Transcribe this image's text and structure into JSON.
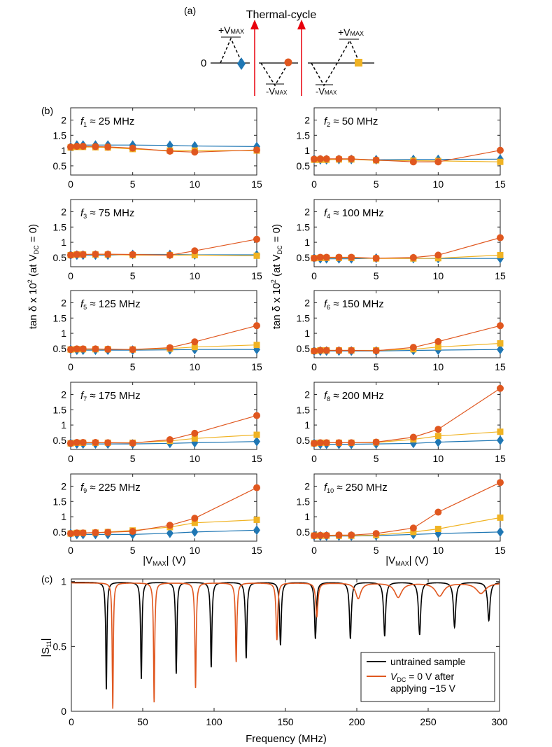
{
  "colors": {
    "series_a": "#1f77b4",
    "series_b": "#e0571f",
    "series_c": "#f0b323",
    "untrained": "#000000",
    "trained": "#e0571f",
    "arrow": "#e8000b"
  },
  "schematic": {
    "panel_label": "(a)",
    "title": "Thermal-cycle",
    "zero_label": "0",
    "plus_v": "+V",
    "minus_v": "-V",
    "max_sub": "MAX"
  },
  "panel_b": {
    "panel_label": "(b)"
  },
  "panel_c": {
    "panel_label": "(c)"
  },
  "chart_data": [
    {
      "type": "line",
      "id": "panel-b-grid",
      "x": [
        0,
        0.5,
        1,
        2,
        3,
        5,
        8,
        10,
        15
      ],
      "xlim": [
        0,
        15
      ],
      "ylim": [
        0.2,
        2.4
      ],
      "xticks": [
        0,
        5,
        10,
        15
      ],
      "yticks": [
        0.5,
        1,
        1.5,
        2
      ],
      "ytick_labels": [
        "0.5",
        "1",
        "1.5",
        "2"
      ],
      "xlabel": {
        "prefix": "|V",
        "sub": "MAX",
        "suffix": "| (V)"
      },
      "ylabel": {
        "pre": "tan δ x 10",
        "sup": "2",
        "mid": " (at V",
        "sub": "DC",
        "post": " = 0)"
      },
      "series_names": [
        "diamond (blue)",
        "circle (orange)",
        "square (yellow)"
      ],
      "subplots": [
        {
          "sym": "f",
          "idx": "1",
          "label": "≈ 25 MHz",
          "a": [
            1.12,
            1.18,
            1.18,
            1.18,
            1.18,
            1.18,
            1.17,
            1.15,
            1.13
          ],
          "b": [
            1.12,
            1.14,
            1.14,
            1.13,
            1.12,
            1.08,
            0.98,
            0.95,
            1.02
          ],
          "c": [
            1.1,
            1.12,
            1.12,
            1.11,
            1.1,
            1.05,
            1.0,
            1.0,
            1.0
          ]
        },
        {
          "sym": "f",
          "idx": "2",
          "label": "≈ 50 MHz",
          "a": [
            0.72,
            0.7,
            0.7,
            0.71,
            0.71,
            0.7,
            0.71,
            0.71,
            0.72
          ],
          "b": [
            0.72,
            0.73,
            0.73,
            0.73,
            0.73,
            0.69,
            0.63,
            0.63,
            1.01
          ],
          "c": [
            0.7,
            0.7,
            0.7,
            0.71,
            0.71,
            0.68,
            0.67,
            0.66,
            0.63
          ]
        },
        {
          "sym": "f",
          "idx": "3",
          "label": "≈ 75 MHz",
          "a": [
            0.58,
            0.58,
            0.58,
            0.58,
            0.58,
            0.6,
            0.6,
            0.59,
            0.59
          ],
          "b": [
            0.58,
            0.6,
            0.6,
            0.61,
            0.61,
            0.6,
            0.58,
            0.72,
            1.1
          ],
          "c": [
            0.58,
            0.6,
            0.6,
            0.6,
            0.6,
            0.58,
            0.58,
            0.58,
            0.56
          ]
        },
        {
          "sym": "f",
          "idx": "4",
          "label": "≈ 100 MHz",
          "a": [
            0.48,
            0.46,
            0.46,
            0.46,
            0.46,
            0.48,
            0.47,
            0.47,
            0.47
          ],
          "b": [
            0.48,
            0.51,
            0.51,
            0.51,
            0.51,
            0.48,
            0.5,
            0.58,
            1.15
          ],
          "c": [
            0.48,
            0.49,
            0.49,
            0.49,
            0.49,
            0.47,
            0.47,
            0.48,
            0.58
          ]
        },
        {
          "sym": "f",
          "idx": "5",
          "label": "≈ 125 MHz",
          "a": [
            0.47,
            0.45,
            0.45,
            0.45,
            0.45,
            0.45,
            0.46,
            0.47,
            0.47
          ],
          "b": [
            0.47,
            0.49,
            0.49,
            0.49,
            0.48,
            0.47,
            0.53,
            0.72,
            1.25
          ],
          "c": [
            0.47,
            0.48,
            0.48,
            0.48,
            0.48,
            0.47,
            0.5,
            0.55,
            0.62
          ]
        },
        {
          "sym": "f",
          "idx": "6",
          "label": "≈ 150 MHz",
          "a": [
            0.42,
            0.42,
            0.42,
            0.42,
            0.42,
            0.42,
            0.44,
            0.45,
            0.47
          ],
          "b": [
            0.42,
            0.44,
            0.44,
            0.44,
            0.44,
            0.43,
            0.54,
            0.73,
            1.25
          ],
          "c": [
            0.42,
            0.44,
            0.44,
            0.44,
            0.44,
            0.44,
            0.48,
            0.55,
            0.67
          ]
        },
        {
          "sym": "f",
          "idx": "7",
          "label": "≈ 175 MHz",
          "a": [
            0.4,
            0.38,
            0.38,
            0.38,
            0.38,
            0.38,
            0.4,
            0.42,
            0.46
          ],
          "b": [
            0.4,
            0.43,
            0.43,
            0.43,
            0.42,
            0.41,
            0.52,
            0.73,
            1.31
          ],
          "c": [
            0.4,
            0.42,
            0.42,
            0.42,
            0.42,
            0.42,
            0.48,
            0.56,
            0.68
          ]
        },
        {
          "sym": "f",
          "idx": "8",
          "label": "≈ 200 MHz",
          "a": [
            0.4,
            0.37,
            0.37,
            0.37,
            0.37,
            0.38,
            0.4,
            0.44,
            0.5
          ],
          "b": [
            0.4,
            0.42,
            0.42,
            0.42,
            0.42,
            0.44,
            0.6,
            0.86,
            2.2
          ],
          "c": [
            0.4,
            0.42,
            0.42,
            0.42,
            0.42,
            0.43,
            0.53,
            0.64,
            0.78
          ]
        },
        {
          "sym": "f",
          "idx": "9",
          "label": "≈ 225 MHz",
          "a": [
            0.45,
            0.42,
            0.42,
            0.42,
            0.42,
            0.42,
            0.46,
            0.5,
            0.56
          ],
          "b": [
            0.45,
            0.47,
            0.47,
            0.48,
            0.49,
            0.52,
            0.72,
            0.95,
            1.95
          ],
          "c": [
            0.45,
            0.47,
            0.47,
            0.48,
            0.5,
            0.55,
            0.66,
            0.8,
            0.9
          ]
        },
        {
          "sym": "f",
          "idx": "10",
          "label": "≈ 250 MHz",
          "a": [
            0.38,
            0.37,
            0.37,
            0.37,
            0.37,
            0.38,
            0.42,
            0.45,
            0.5
          ],
          "b": [
            0.38,
            0.39,
            0.39,
            0.4,
            0.4,
            0.45,
            0.63,
            1.15,
            2.12
          ],
          "c": [
            0.38,
            0.38,
            0.38,
            0.38,
            0.38,
            0.4,
            0.5,
            0.6,
            0.97
          ]
        }
      ]
    },
    {
      "type": "line",
      "id": "panel-c-spectrum",
      "xlabel": "Frequency (MHz)",
      "ylabel": {
        "pre": "|S",
        "sub": "11",
        "post": "|"
      },
      "xlim": [
        0,
        300
      ],
      "ylim": [
        0,
        1.02
      ],
      "xticks": [
        0,
        50,
        100,
        150,
        200,
        250,
        300
      ],
      "yticks": [
        0,
        0.5,
        1
      ],
      "ytick_labels": [
        "0",
        "0.5",
        "1"
      ],
      "series": [
        {
          "name": "untrained sample",
          "baseline": 0.995,
          "resonances": [
            {
              "f": 24.5,
              "min": 0.17,
              "w": 0.5
            },
            {
              "f": 49,
              "min": 0.25,
              "w": 0.55
            },
            {
              "f": 73.5,
              "min": 0.29,
              "w": 0.55
            },
            {
              "f": 98,
              "min": 0.34,
              "w": 0.6
            },
            {
              "f": 122.5,
              "min": 0.41,
              "w": 0.65
            },
            {
              "f": 146.5,
              "min": 0.51,
              "w": 0.7
            },
            {
              "f": 171,
              "min": 0.56,
              "w": 0.75
            },
            {
              "f": 195.5,
              "min": 0.56,
              "w": 0.8
            },
            {
              "f": 219.5,
              "min": 0.58,
              "w": 0.85
            },
            {
              "f": 244,
              "min": 0.59,
              "w": 0.9
            },
            {
              "f": 268.5,
              "min": 0.65,
              "w": 0.95
            },
            {
              "f": 292.5,
              "min": 0.7,
              "w": 1.0
            }
          ]
        },
        {
          "name_prefix": "V",
          "name_sub": "DC",
          "name_line1": " = 0 V after",
          "name_line2": "applying −15 V",
          "baseline": 0.99,
          "resonances": [
            {
              "f": 29,
              "min": 0.02,
              "w": 0.45
            },
            {
              "f": 58,
              "min": 0.07,
              "w": 0.5
            },
            {
              "f": 87,
              "min": 0.18,
              "w": 0.55
            },
            {
              "f": 115.5,
              "min": 0.38,
              "w": 0.6
            },
            {
              "f": 144,
              "min": 0.55,
              "w": 0.7
            },
            {
              "f": 172,
              "min": 0.73,
              "w": 0.9
            },
            {
              "f": 201,
              "min": 0.87,
              "w": 2.2
            },
            {
              "f": 229,
              "min": 0.88,
              "w": 3.0
            },
            {
              "f": 258,
              "min": 0.89,
              "w": 3.5
            },
            {
              "f": 287,
              "min": 0.91,
              "w": 4.0
            }
          ]
        }
      ]
    }
  ]
}
